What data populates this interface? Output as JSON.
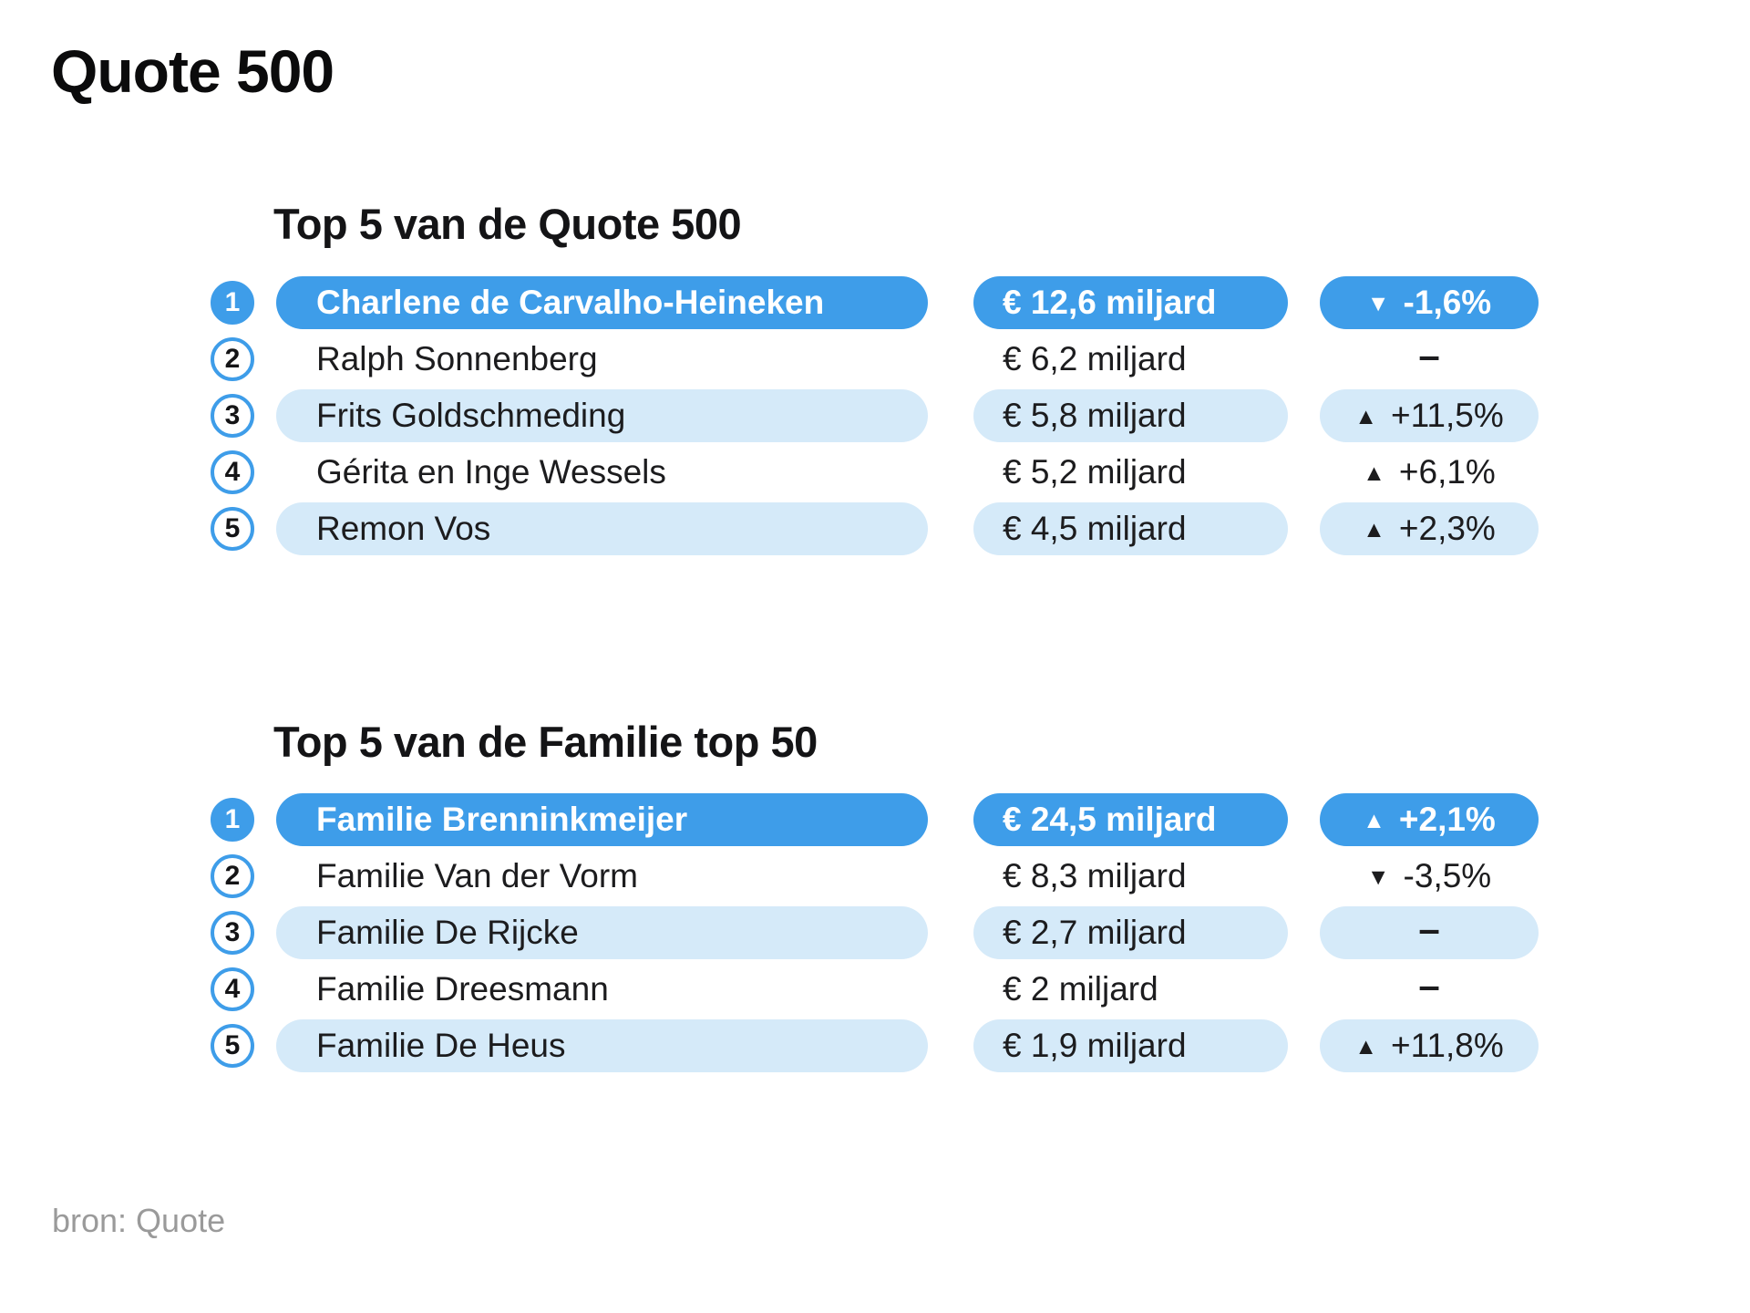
{
  "page": {
    "title": "Quote 500",
    "source": "bron: Quote"
  },
  "colors": {
    "accent_blue": "#3E9DE9",
    "light_blue": "#D5EAF9",
    "text_dark": "#1C1C1E",
    "source_gray": "#9A9A9A"
  },
  "icons": {
    "up_triangle": "▲",
    "down_triangle": "▼",
    "no_change_dash": "–"
  },
  "tables": [
    {
      "title": "Top 5 van de Quote 500",
      "rows": [
        {
          "rank": "1",
          "name": "Charlene de Carvalho-Heineken",
          "amount": "€ 12,6 miljard",
          "direction": "down",
          "change": "-1,6%",
          "highlight": "primary"
        },
        {
          "rank": "2",
          "name": "Ralph Sonnenberg",
          "amount": "€ 6,2 miljard",
          "direction": "none",
          "change": "–",
          "highlight": "none"
        },
        {
          "rank": "3",
          "name": "Frits Goldschmeding",
          "amount": "€ 5,8 miljard",
          "direction": "up",
          "change": "+11,5%",
          "highlight": "tint"
        },
        {
          "rank": "4",
          "name": "Gérita en Inge Wessels",
          "amount": "€ 5,2 miljard",
          "direction": "up",
          "change": "+6,1%",
          "highlight": "none"
        },
        {
          "rank": "5",
          "name": "Remon Vos",
          "amount": "€ 4,5 miljard",
          "direction": "up",
          "change": "+2,3%",
          "highlight": "tint"
        }
      ]
    },
    {
      "title": "Top 5 van de Familie top 50",
      "rows": [
        {
          "rank": "1",
          "name": "Familie Brenninkmeijer",
          "amount": "€ 24,5 miljard",
          "direction": "up",
          "change": "+2,1%",
          "highlight": "primary"
        },
        {
          "rank": "2",
          "name": "Familie Van der Vorm",
          "amount": "€ 8,3 miljard",
          "direction": "down",
          "change": "-3,5%",
          "highlight": "none"
        },
        {
          "rank": "3",
          "name": "Familie De Rijcke",
          "amount": "€ 2,7 miljard",
          "direction": "none",
          "change": "–",
          "highlight": "tint"
        },
        {
          "rank": "4",
          "name": "Familie Dreesmann",
          "amount": "€ 2 miljard",
          "direction": "none",
          "change": "–",
          "highlight": "none"
        },
        {
          "rank": "5",
          "name": "Familie De Heus",
          "amount": "€ 1,9 miljard",
          "direction": "up",
          "change": "+11,8%",
          "highlight": "tint"
        }
      ]
    }
  ],
  "chart_data": [
    {
      "type": "table",
      "title": "Top 5 van de Quote 500",
      "columns": [
        "rank",
        "name",
        "wealth",
        "change_vs_previous"
      ],
      "rows": [
        [
          1,
          "Charlene de Carvalho-Heineken",
          "€ 12,6 miljard",
          "-1,6%"
        ],
        [
          2,
          "Ralph Sonnenberg",
          "€ 6,2 miljard",
          "–"
        ],
        [
          3,
          "Frits Goldschmeding",
          "€ 5,8 miljard",
          "+11,5%"
        ],
        [
          4,
          "Gérita en Inge Wessels",
          "€ 5,2 miljard",
          "+6,1%"
        ],
        [
          5,
          "Remon Vos",
          "€ 4,5 miljard",
          "+2,3%"
        ]
      ],
      "wealth_eur_miljard": [
        12.6,
        6.2,
        5.8,
        5.2,
        4.5
      ],
      "change_pct": [
        -1.6,
        0,
        11.5,
        6.1,
        2.3
      ]
    },
    {
      "type": "table",
      "title": "Top 5 van de Familie top 50",
      "columns": [
        "rank",
        "name",
        "wealth",
        "change_vs_previous"
      ],
      "rows": [
        [
          1,
          "Familie Brenninkmeijer",
          "€ 24,5 miljard",
          "+2,1%"
        ],
        [
          2,
          "Familie Van der Vorm",
          "€ 8,3 miljard",
          "-3,5%"
        ],
        [
          3,
          "Familie De Rijcke",
          "€ 2,7 miljard",
          "–"
        ],
        [
          4,
          "Familie Dreesmann",
          "€ 2 miljard",
          "–"
        ],
        [
          5,
          "Familie De Heus",
          "€ 1,9 miljard",
          "+11,8%"
        ]
      ],
      "wealth_eur_miljard": [
        24.5,
        8.3,
        2.7,
        2.0,
        1.9
      ],
      "change_pct": [
        2.1,
        -3.5,
        0,
        0,
        11.8
      ]
    }
  ]
}
